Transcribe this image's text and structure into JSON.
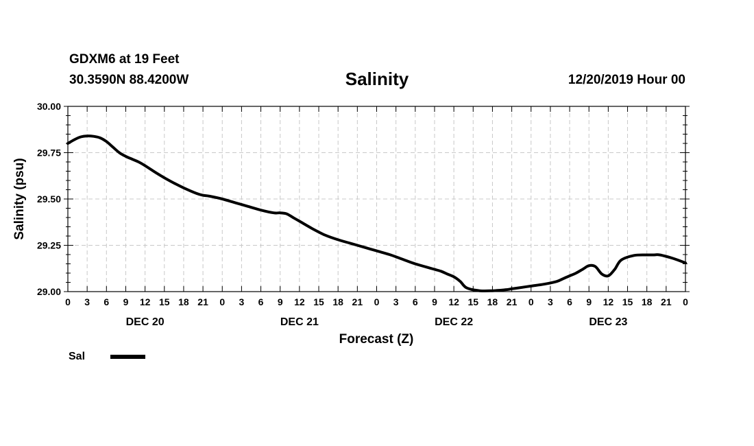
{
  "header": {
    "station": "GDXM6 at 19 Feet",
    "coords": "30.3590N 88.4200W",
    "title": "Salinity",
    "stamp": "12/20/2019 Hour 00"
  },
  "chart_data": {
    "type": "line",
    "title": "Salinity",
    "xlabel": "Forecast (Z)",
    "ylabel": "Salinity (psu)",
    "ylim": [
      29.0,
      30.0
    ],
    "xlim": [
      0,
      96
    ],
    "y_ticks": [
      "29.00",
      "29.25",
      "29.50",
      "29.75",
      "30.00"
    ],
    "y_tick_values": [
      29.0,
      29.25,
      29.5,
      29.75,
      30.0
    ],
    "x_tick_labels": [
      "0",
      "3",
      "6",
      "9",
      "12",
      "15",
      "18",
      "21",
      "0",
      "3",
      "6",
      "9",
      "12",
      "15",
      "18",
      "21",
      "0",
      "3",
      "6",
      "9",
      "12",
      "15",
      "18",
      "21",
      "0",
      "3",
      "6",
      "9",
      "12",
      "15",
      "18",
      "21",
      "0"
    ],
    "day_labels": [
      {
        "label": "DEC 20",
        "hour": 12
      },
      {
        "label": "DEC 21",
        "hour": 36
      },
      {
        "label": "DEC 22",
        "hour": 60
      },
      {
        "label": "DEC 23",
        "hour": 84
      }
    ],
    "grid": true,
    "series": [
      {
        "name": "Sal",
        "color": "#000000",
        "x": [
          0,
          1,
          2,
          3,
          4,
          5,
          6,
          7,
          8,
          9,
          10,
          11,
          12,
          14,
          16,
          18,
          20,
          21,
          22,
          24,
          26,
          28,
          30,
          32,
          33,
          34,
          35,
          36,
          38,
          40,
          42,
          44,
          46,
          48,
          50,
          52,
          54,
          56,
          57,
          58,
          59,
          60,
          61,
          62,
          64,
          66,
          68,
          69,
          70,
          72,
          74,
          76,
          77,
          78,
          79,
          80,
          81,
          82,
          83,
          84,
          85,
          86,
          88,
          90,
          91,
          92,
          94,
          96
        ],
        "values": [
          29.8,
          29.82,
          29.835,
          29.84,
          29.838,
          29.83,
          29.81,
          29.78,
          29.75,
          29.73,
          29.715,
          29.7,
          29.68,
          29.635,
          29.595,
          29.56,
          29.53,
          29.52,
          29.515,
          29.5,
          29.48,
          29.46,
          29.44,
          29.425,
          29.425,
          29.42,
          29.4,
          29.38,
          29.34,
          29.305,
          29.28,
          29.26,
          29.24,
          29.22,
          29.2,
          29.175,
          29.15,
          29.13,
          29.12,
          29.11,
          29.095,
          29.08,
          29.055,
          29.02,
          29.005,
          29.005,
          29.01,
          29.015,
          29.02,
          29.03,
          29.04,
          29.055,
          29.07,
          29.085,
          29.1,
          29.12,
          29.14,
          29.135,
          29.095,
          29.085,
          29.12,
          29.17,
          29.195,
          29.198,
          29.198,
          29.198,
          29.18,
          29.155
        ]
      }
    ],
    "legend": {
      "position": "bottom-left",
      "label": "Sal"
    }
  }
}
